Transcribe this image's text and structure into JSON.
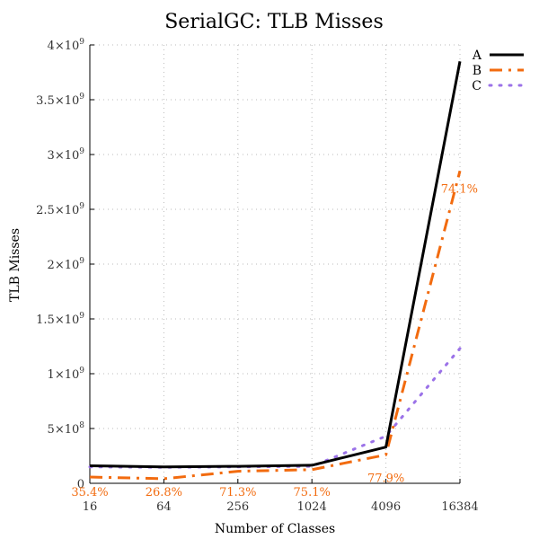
{
  "chart_data": {
    "type": "line",
    "title": "SerialGC: TLB Misses",
    "xlabel": "Number of Classes",
    "ylabel": "TLB Misses",
    "x_ticks": [
      "16",
      "64",
      "256",
      "1024",
      "4096",
      "16384"
    ],
    "y_ticks": [
      {
        "value": 0,
        "label": "0",
        "exp": ""
      },
      {
        "value": 500000000,
        "label": "5×10",
        "exp": "8"
      },
      {
        "value": 1000000000,
        "label": "1×10",
        "exp": "9"
      },
      {
        "value": 1500000000,
        "label": "1.5×10",
        "exp": "9"
      },
      {
        "value": 2000000000,
        "label": "2×10",
        "exp": "9"
      },
      {
        "value": 2500000000,
        "label": "2.5×10",
        "exp": "9"
      },
      {
        "value": 3000000000,
        "label": "3×10",
        "exp": "9"
      },
      {
        "value": 3500000000,
        "label": "3.5×10",
        "exp": "9"
      },
      {
        "value": 4000000000,
        "label": "4×10",
        "exp": "9"
      }
    ],
    "ylim": [
      0,
      4000000000
    ],
    "grid": true,
    "legend_position": "top-right",
    "series": [
      {
        "name": "A",
        "color": "#000000",
        "style": "solid",
        "values": [
          160000000,
          150000000,
          155000000,
          165000000,
          330000000,
          3850000000
        ]
      },
      {
        "name": "B",
        "color": "#f26b0f",
        "style": "dashdot",
        "values": [
          57000000,
          42000000,
          110000000,
          125000000,
          260000000,
          2850000000
        ]
      },
      {
        "name": "C",
        "color": "#9b72e8",
        "style": "dotted",
        "values": [
          150000000,
          145000000,
          150000000,
          155000000,
          430000000,
          1230000000
        ]
      }
    ],
    "annotations": [
      {
        "text": "35.4%",
        "x_index": 0,
        "color": "#f26b0f"
      },
      {
        "text": "26.8%",
        "x_index": 1,
        "color": "#f26b0f"
      },
      {
        "text": "71.3%",
        "x_index": 2,
        "color": "#f26b0f"
      },
      {
        "text": "75.1%",
        "x_index": 3,
        "color": "#f26b0f"
      },
      {
        "text": "77.9%",
        "x_index": 4,
        "color": "#f26b0f"
      },
      {
        "text": "74.1%",
        "x_index": 5,
        "color": "#f26b0f"
      }
    ]
  }
}
